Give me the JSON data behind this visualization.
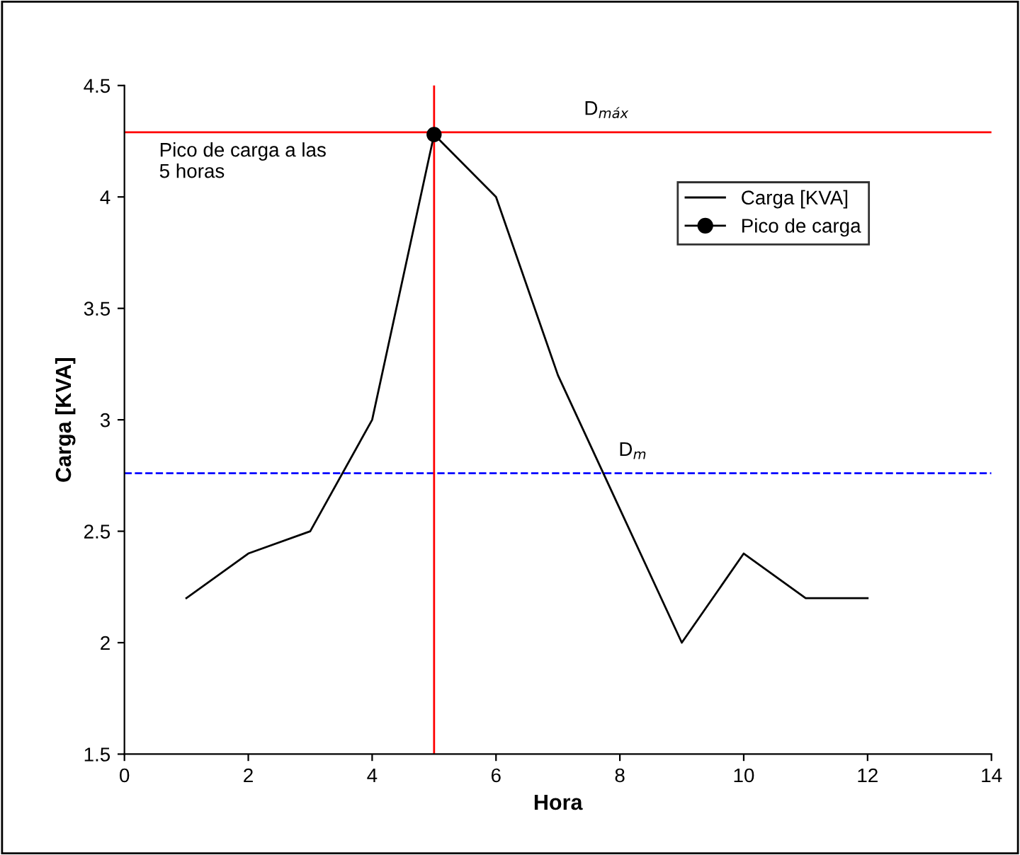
{
  "chart_data": {
    "type": "line",
    "xlabel": "Hora",
    "ylabel": "Carga [KVA]",
    "series": [
      {
        "name": "Carga [KVA]",
        "color": "#000000",
        "x": [
          1,
          2,
          3,
          4,
          5,
          6,
          7,
          8,
          9,
          10,
          11,
          12
        ],
        "values": [
          2.2,
          2.4,
          2.5,
          3.0,
          4.28,
          4.0,
          3.2,
          2.6,
          2.0,
          2.4,
          2.2,
          2.2
        ],
        "marker": "none",
        "line_style": "solid"
      },
      {
        "name": "Pico de carga",
        "type": "scatter",
        "color": "#000000",
        "x": [
          5
        ],
        "values": [
          4.28
        ],
        "marker": "circle"
      }
    ],
    "ref_lines": [
      {
        "axis": "y",
        "value": 4.29,
        "label": "D$_{máx}$",
        "color": "#ff0000",
        "line_style": "solid"
      },
      {
        "axis": "y",
        "value": 2.76,
        "label": "D$_{m}$",
        "color": "#0000ff",
        "line_style": "dashed"
      },
      {
        "axis": "x",
        "value": 5,
        "label": null,
        "color": "#ff0000",
        "line_style": "solid"
      }
    ],
    "annotations": [
      "Pico de carga a las\n5 horas"
    ],
    "xlim": [
      0,
      14
    ],
    "xticks": [
      0,
      2,
      4,
      6,
      8,
      10,
      12,
      14
    ],
    "ylim": [
      1.5,
      4.5
    ],
    "yticks": [
      1.5,
      2,
      2.5,
      3,
      3.5,
      4,
      4.5
    ],
    "grid": false,
    "legend": "top right"
  }
}
